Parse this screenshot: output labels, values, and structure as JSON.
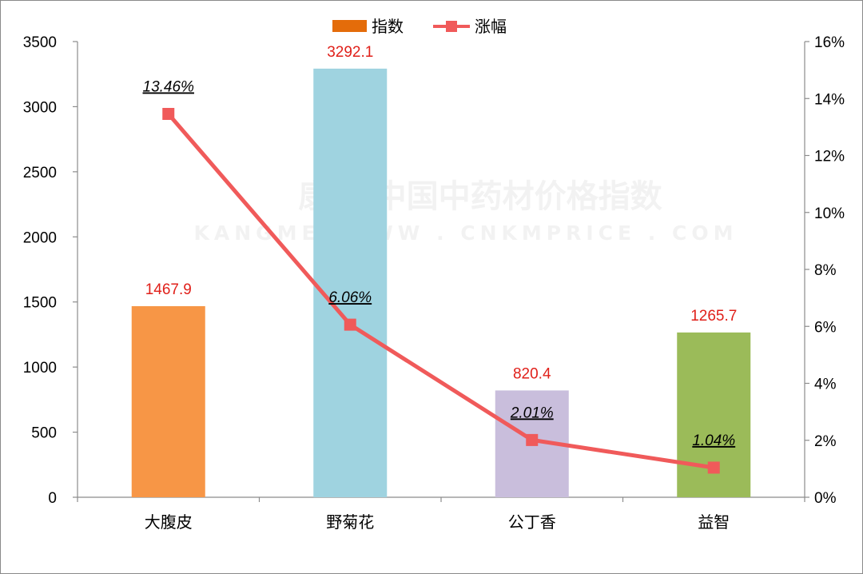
{
  "chart_data": {
    "type": "bar",
    "categories": [
      "大腹皮",
      "野菊花",
      "公丁香",
      "益智"
    ],
    "series": [
      {
        "name": "指数",
        "type": "bar",
        "axis": "left",
        "values": [
          1467.9,
          3292.1,
          820.4,
          1265.7
        ],
        "value_labels": [
          "1467.9",
          "3292.1",
          "820.4",
          "1265.7"
        ],
        "colors": [
          "#f79646",
          "#9fd3e0",
          "#c9bedc",
          "#9bbb59"
        ]
      },
      {
        "name": "涨幅",
        "type": "line",
        "axis": "right",
        "values": [
          13.46,
          6.06,
          2.01,
          1.04
        ],
        "value_labels": [
          "13.46%",
          "6.06%",
          "2.01%",
          "1.04%"
        ],
        "color": "#f05a5a"
      }
    ],
    "y_left": {
      "lim": [
        0,
        3500
      ],
      "ticks": [
        "0",
        "500",
        "1000",
        "1500",
        "2000",
        "2500",
        "3000",
        "3500"
      ]
    },
    "y_right": {
      "lim": [
        0,
        16
      ],
      "ticks": [
        "0%",
        "2%",
        "4%",
        "6%",
        "8%",
        "10%",
        "12%",
        "14%",
        "16%"
      ]
    },
    "legend": {
      "position": "top",
      "bar_swatch_color": "#e46c0a"
    },
    "grid": false,
    "value_label_color": "#e0201a"
  },
  "watermark": {
    "line1": "康美·中国中药材价格指数",
    "line2": "KANGMEI  WWW . CNKMPRICE . COM"
  }
}
